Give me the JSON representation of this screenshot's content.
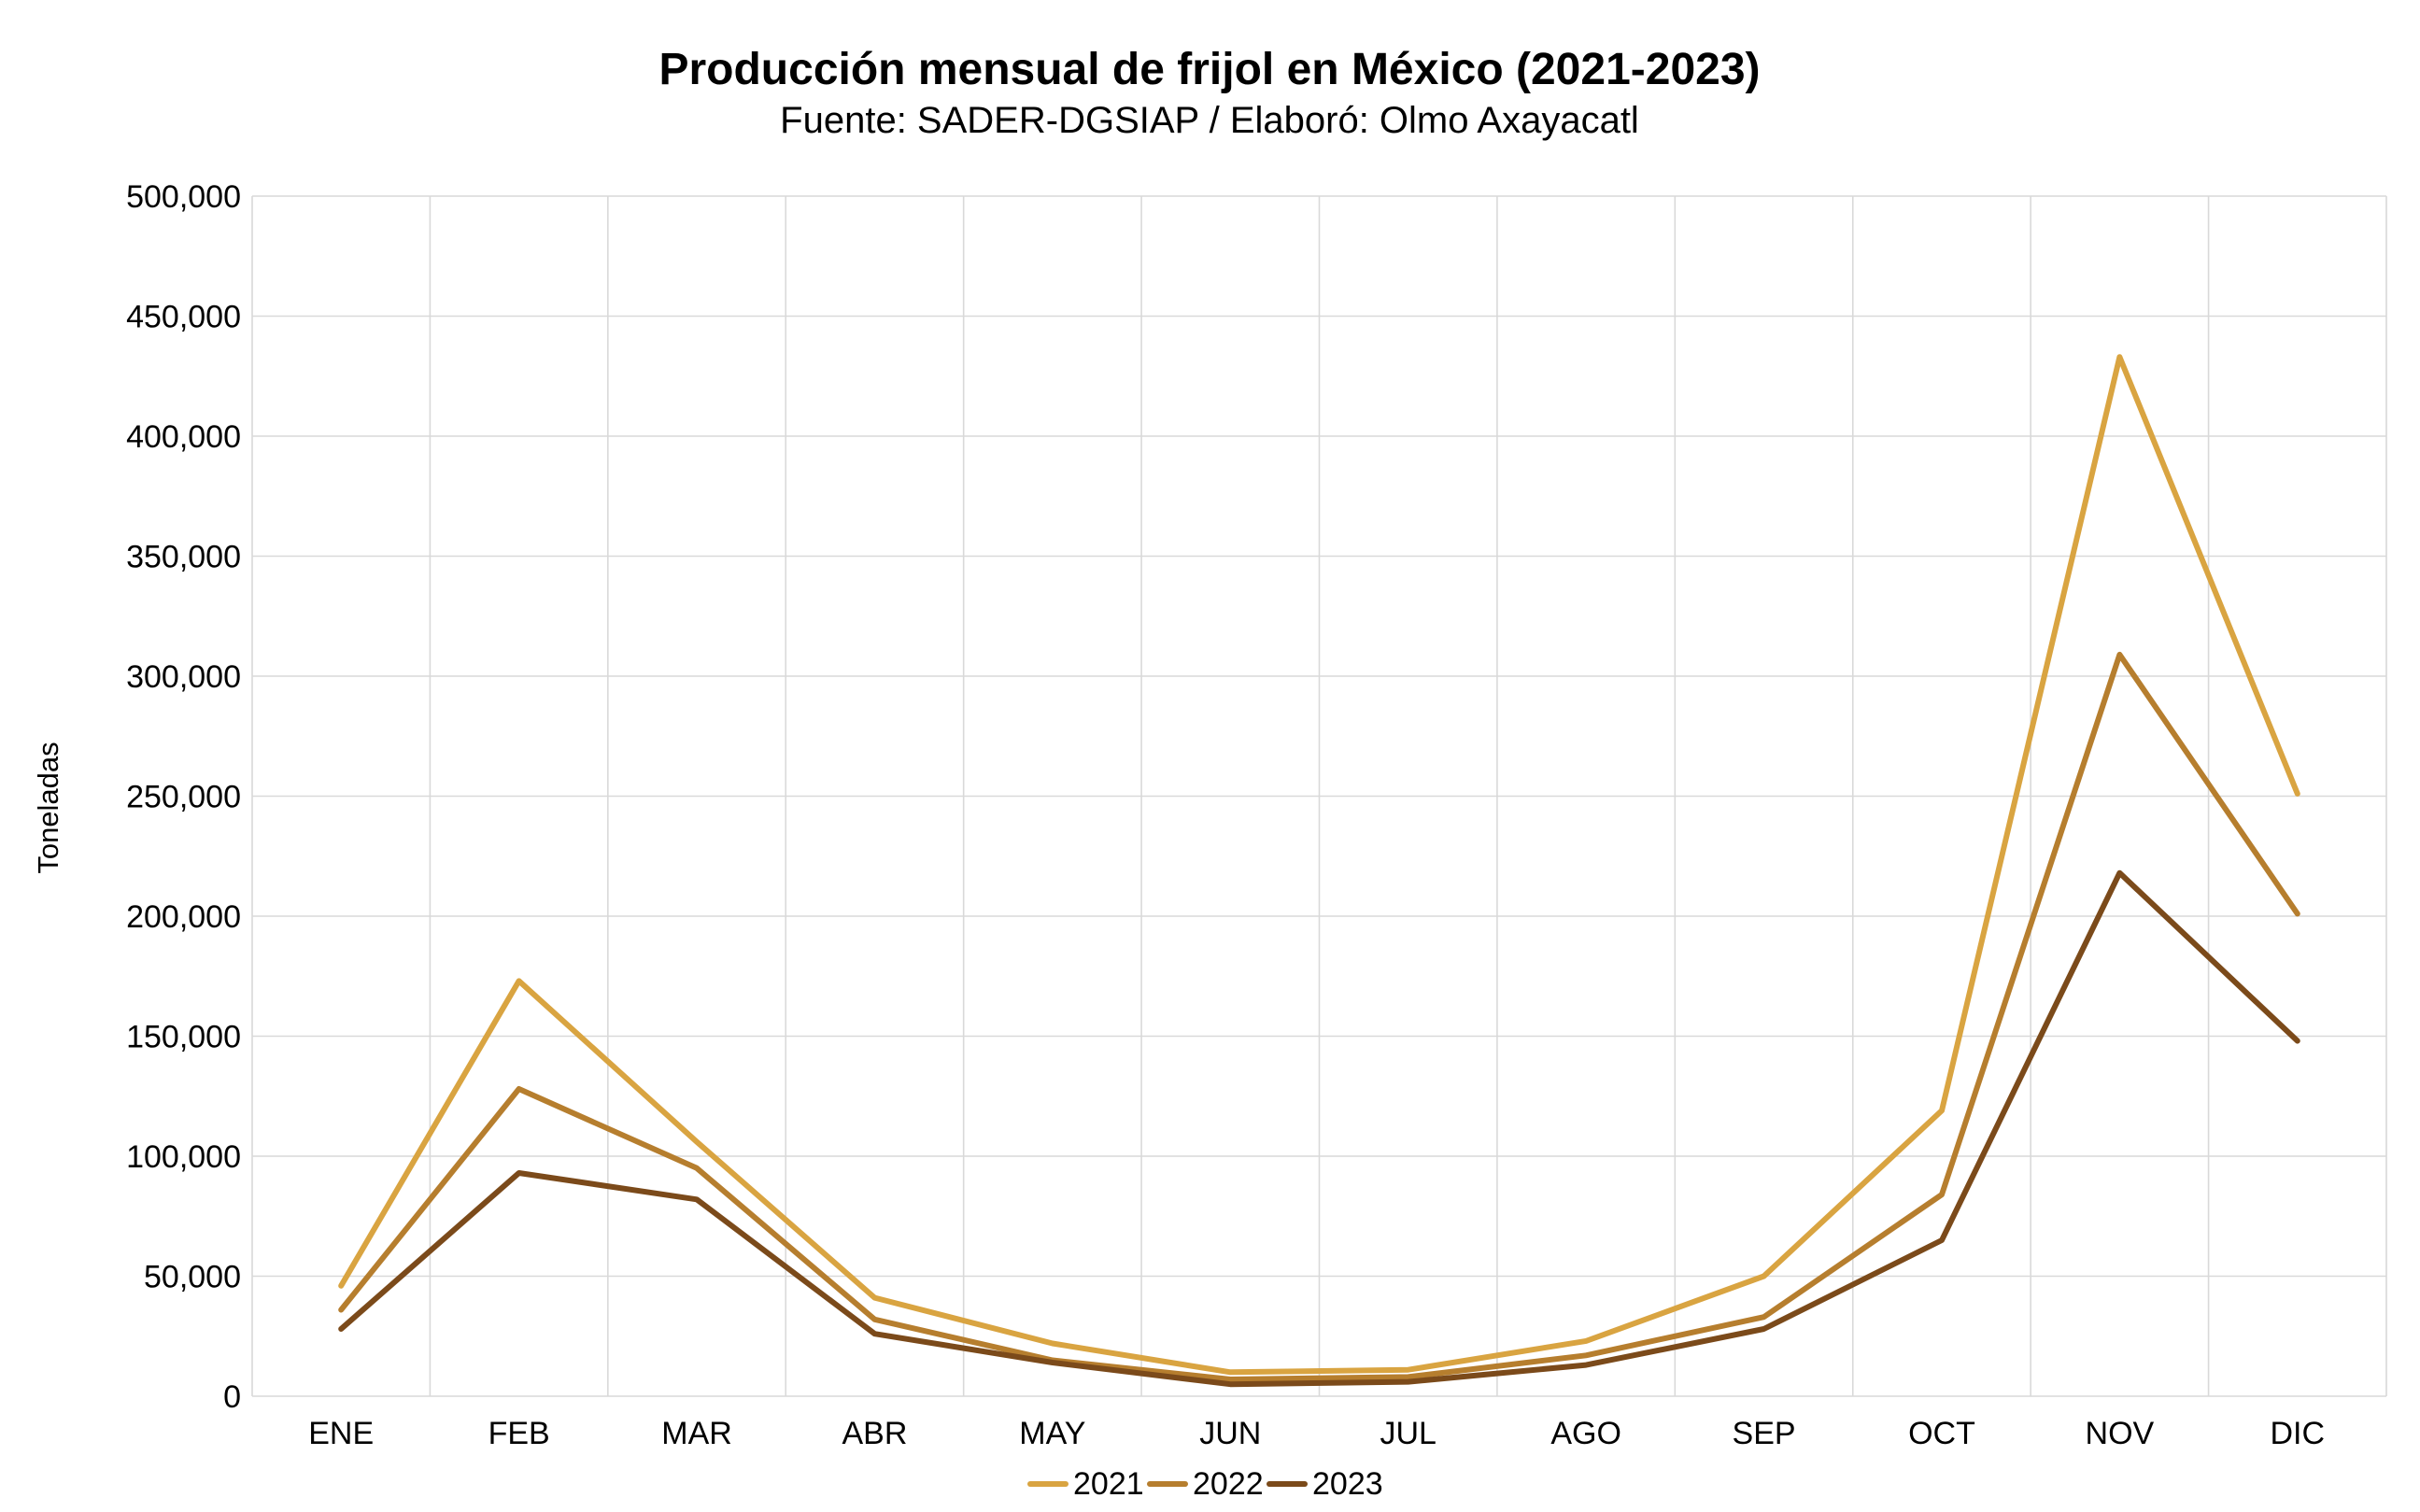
{
  "chart_data": {
    "type": "line",
    "title": "Producción mensual de frijol en México (2021-2023)",
    "subtitle": "Fuente: SADER-DGSIAP / Elaboró: Olmo Axayacatl",
    "xlabel": "",
    "ylabel": "Toneladas",
    "categories": [
      "ENE",
      "FEB",
      "MAR",
      "ABR",
      "MAY",
      "JUN",
      "JUL",
      "AGO",
      "SEP",
      "OCT",
      "NOV",
      "DIC"
    ],
    "ylim": [
      0,
      500000
    ],
    "yticks": [
      0,
      50000,
      100000,
      150000,
      200000,
      250000,
      300000,
      350000,
      400000,
      450000,
      500000
    ],
    "ytick_labels": [
      "0",
      "50,000",
      "100,000",
      "150,000",
      "200,000",
      "250,000",
      "300,000",
      "350,000",
      "400,000",
      "450,000",
      "500,000"
    ],
    "grid": true,
    "legend_position": "bottom-center",
    "series": [
      {
        "name": "2021",
        "color": "#D9A441",
        "values": [
          46000,
          173000,
          106000,
          41000,
          22000,
          10000,
          11000,
          23000,
          50000,
          119000,
          433000,
          251000
        ]
      },
      {
        "name": "2022",
        "color": "#B67E2E",
        "values": [
          36000,
          128000,
          95000,
          32000,
          15000,
          7000,
          8000,
          17000,
          33000,
          84000,
          309000,
          201000
        ]
      },
      {
        "name": "2023",
        "color": "#7B4A1A",
        "values": [
          28000,
          93000,
          82000,
          26000,
          14000,
          5000,
          6000,
          13000,
          28000,
          65000,
          218000,
          148000
        ]
      }
    ]
  }
}
